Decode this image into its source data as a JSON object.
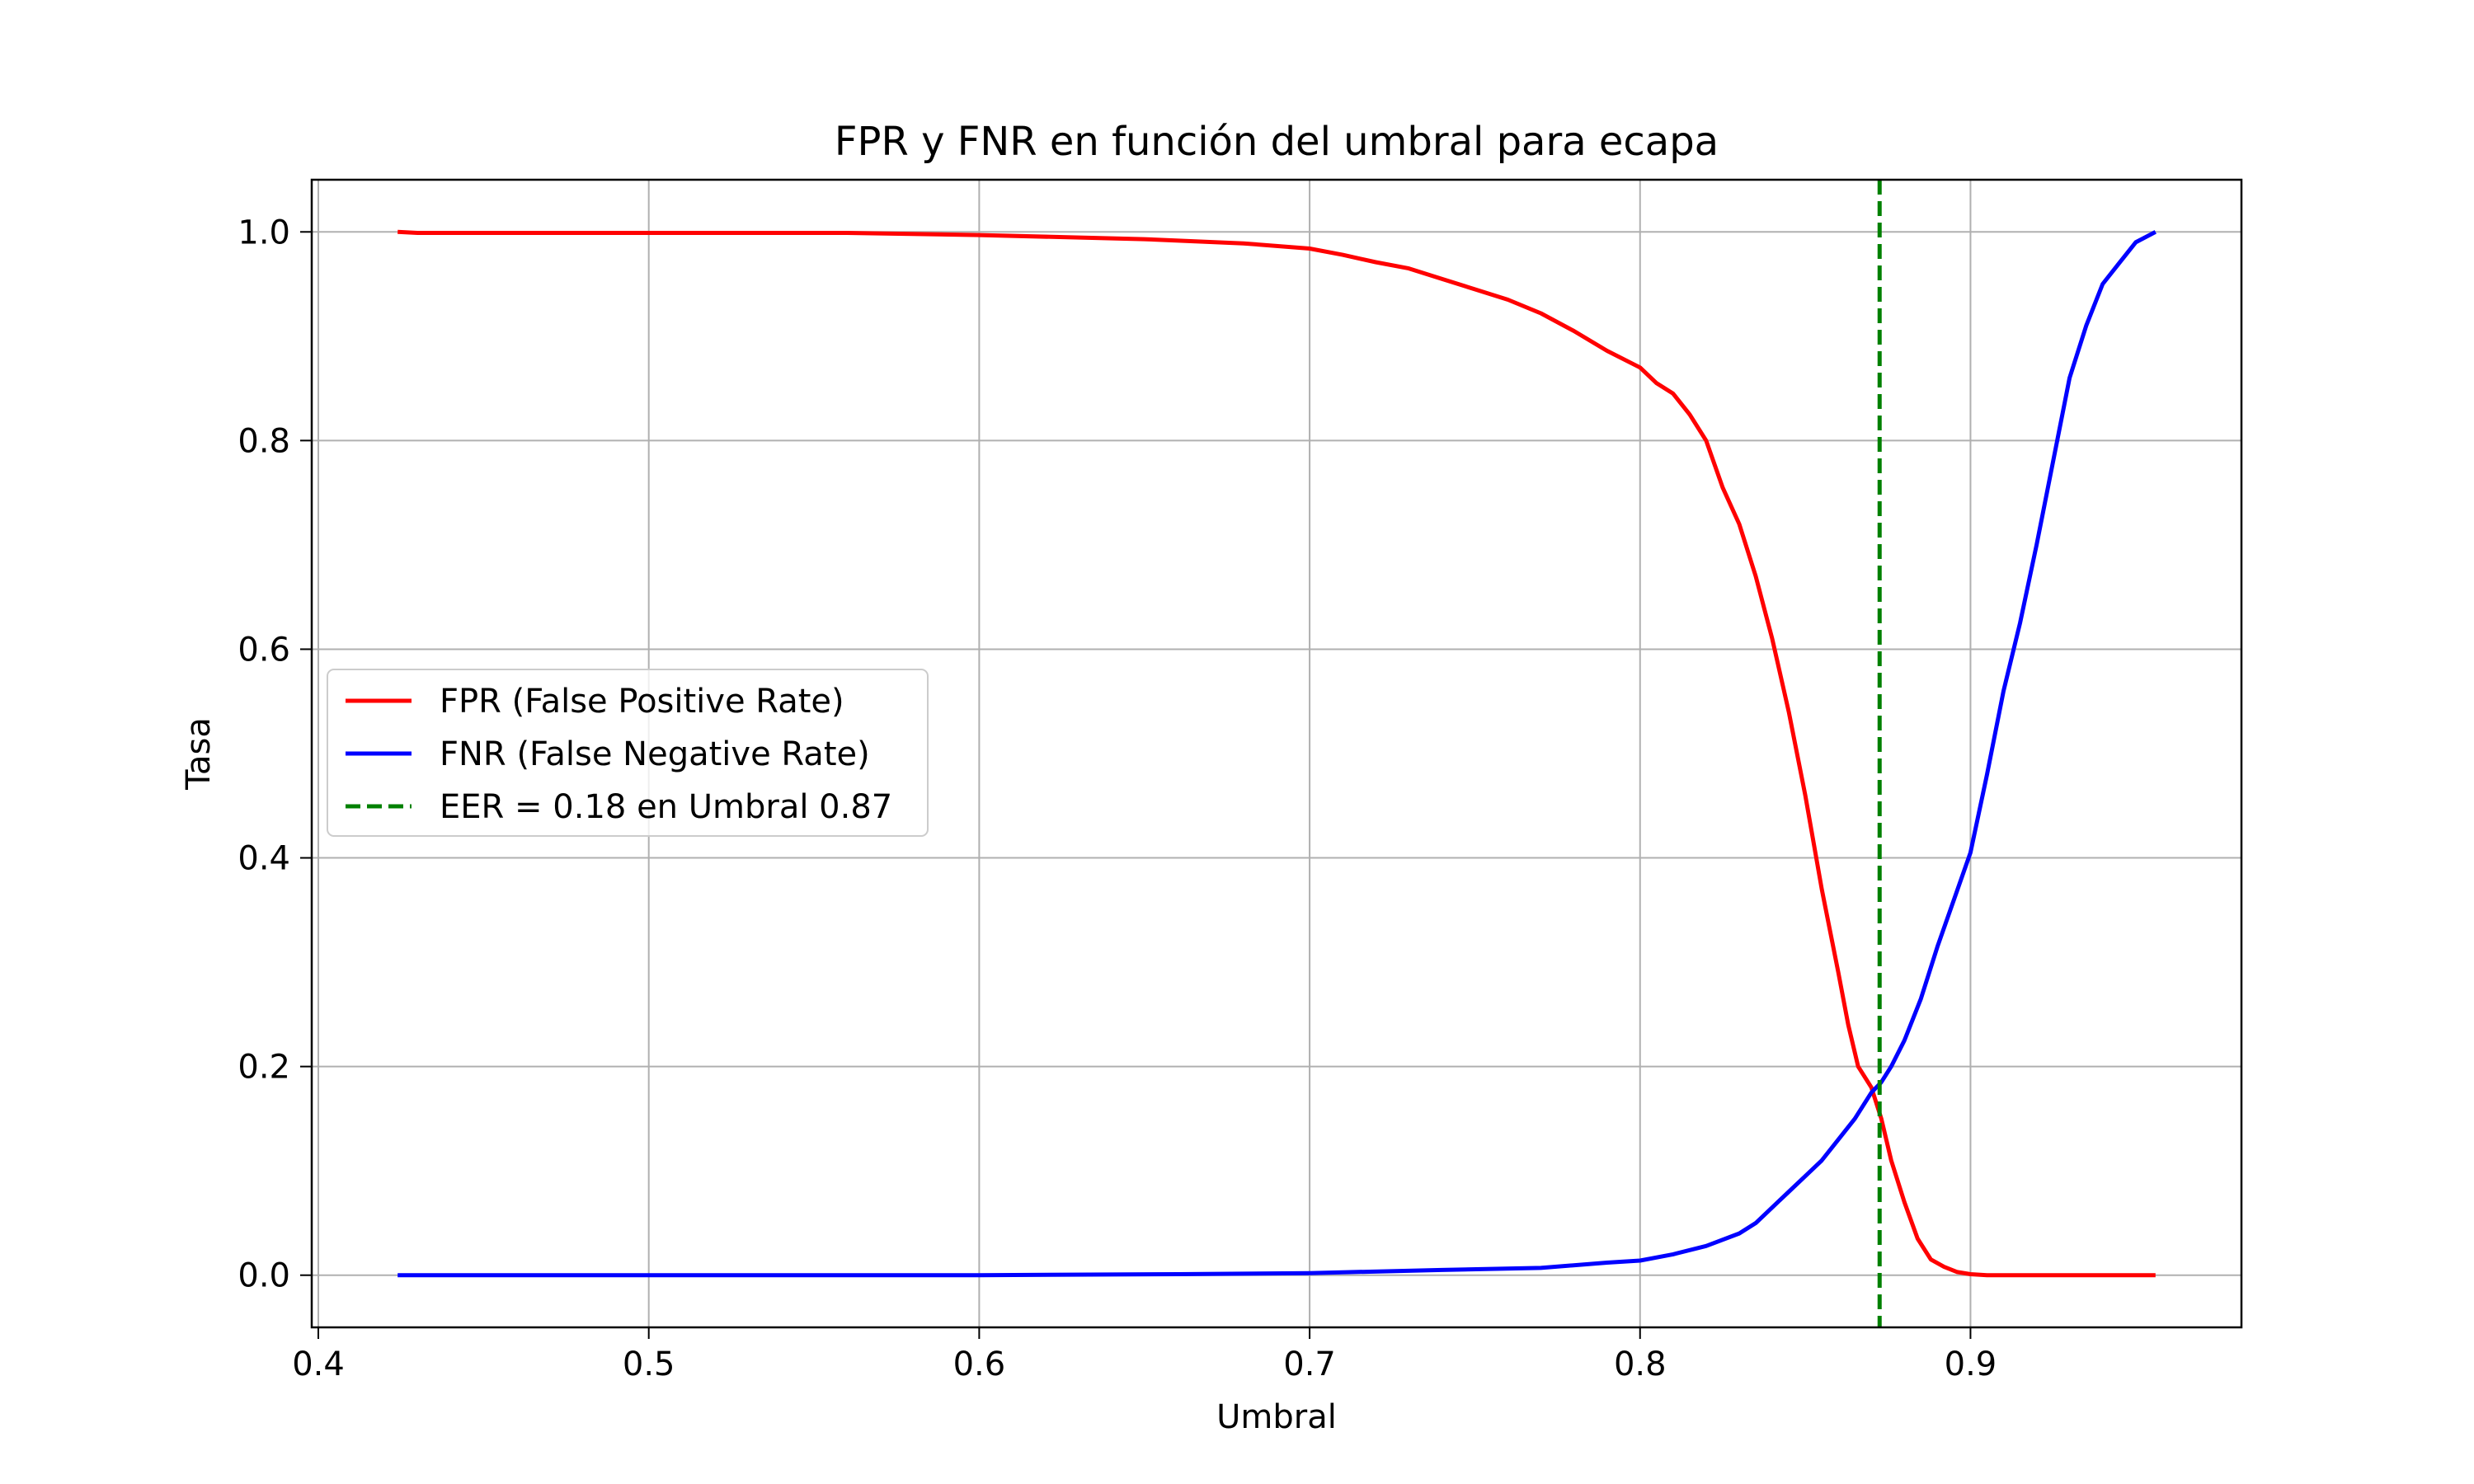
{
  "chart_data": {
    "type": "line",
    "title": "FPR y FNR en función del umbral para ecapa",
    "xlabel": "Umbral",
    "ylabel": "Tasa",
    "xlim": [
      0.398,
      0.982
    ],
    "ylim": [
      -0.05,
      1.05
    ],
    "xticks": [
      0.4,
      0.5,
      0.6,
      0.7,
      0.8,
      0.9
    ],
    "xtick_labels": [
      "0.4",
      "0.5",
      "0.6",
      "0.7",
      "0.8",
      "0.9"
    ],
    "yticks": [
      0.0,
      0.2,
      0.4,
      0.6,
      0.8,
      1.0
    ],
    "ytick_labels": [
      "0.0",
      "0.2",
      "0.4",
      "0.6",
      "0.8",
      "1.0"
    ],
    "grid": true,
    "legend_position": "center-left",
    "series": [
      {
        "name": "FPR (False Positive Rate)",
        "color": "#ff0000",
        "style": "solid",
        "x": [
          0.424,
          0.43,
          0.5,
          0.56,
          0.6,
          0.65,
          0.68,
          0.7,
          0.71,
          0.72,
          0.73,
          0.74,
          0.75,
          0.76,
          0.77,
          0.78,
          0.79,
          0.8,
          0.805,
          0.81,
          0.815,
          0.82,
          0.825,
          0.83,
          0.835,
          0.84,
          0.845,
          0.85,
          0.855,
          0.86,
          0.863,
          0.866,
          0.87,
          0.873,
          0.876,
          0.88,
          0.884,
          0.888,
          0.892,
          0.896,
          0.9,
          0.905,
          0.956
        ],
        "y": [
          1.0,
          0.999,
          0.999,
          0.999,
          0.997,
          0.993,
          0.989,
          0.984,
          0.978,
          0.971,
          0.965,
          0.955,
          0.945,
          0.935,
          0.922,
          0.905,
          0.886,
          0.87,
          0.855,
          0.845,
          0.825,
          0.8,
          0.755,
          0.72,
          0.67,
          0.61,
          0.54,
          0.46,
          0.37,
          0.29,
          0.24,
          0.2,
          0.18,
          0.15,
          0.11,
          0.07,
          0.035,
          0.015,
          0.008,
          0.003,
          0.001,
          0.0,
          0.0
        ]
      },
      {
        "name": "FNR (False Negative Rate)",
        "color": "#0000ff",
        "style": "solid",
        "x": [
          0.424,
          0.5,
          0.6,
          0.66,
          0.7,
          0.74,
          0.77,
          0.79,
          0.8,
          0.81,
          0.82,
          0.83,
          0.835,
          0.84,
          0.845,
          0.85,
          0.855,
          0.86,
          0.865,
          0.87,
          0.873,
          0.876,
          0.88,
          0.885,
          0.89,
          0.895,
          0.9,
          0.905,
          0.91,
          0.915,
          0.92,
          0.925,
          0.93,
          0.935,
          0.94,
          0.945,
          0.95,
          0.956
        ],
        "y": [
          0.0,
          0.0,
          0.0,
          0.001,
          0.002,
          0.005,
          0.007,
          0.012,
          0.014,
          0.02,
          0.028,
          0.04,
          0.05,
          0.065,
          0.08,
          0.095,
          0.11,
          0.13,
          0.15,
          0.175,
          0.185,
          0.2,
          0.225,
          0.265,
          0.315,
          0.36,
          0.405,
          0.48,
          0.56,
          0.625,
          0.7,
          0.78,
          0.86,
          0.91,
          0.95,
          0.97,
          0.99,
          1.0
        ]
      }
    ],
    "reference_line": {
      "name": "EER = 0.18 en Umbral 0.87",
      "orientation": "vertical",
      "x": 0.8725,
      "color": "#008000",
      "style": "dashed"
    }
  }
}
